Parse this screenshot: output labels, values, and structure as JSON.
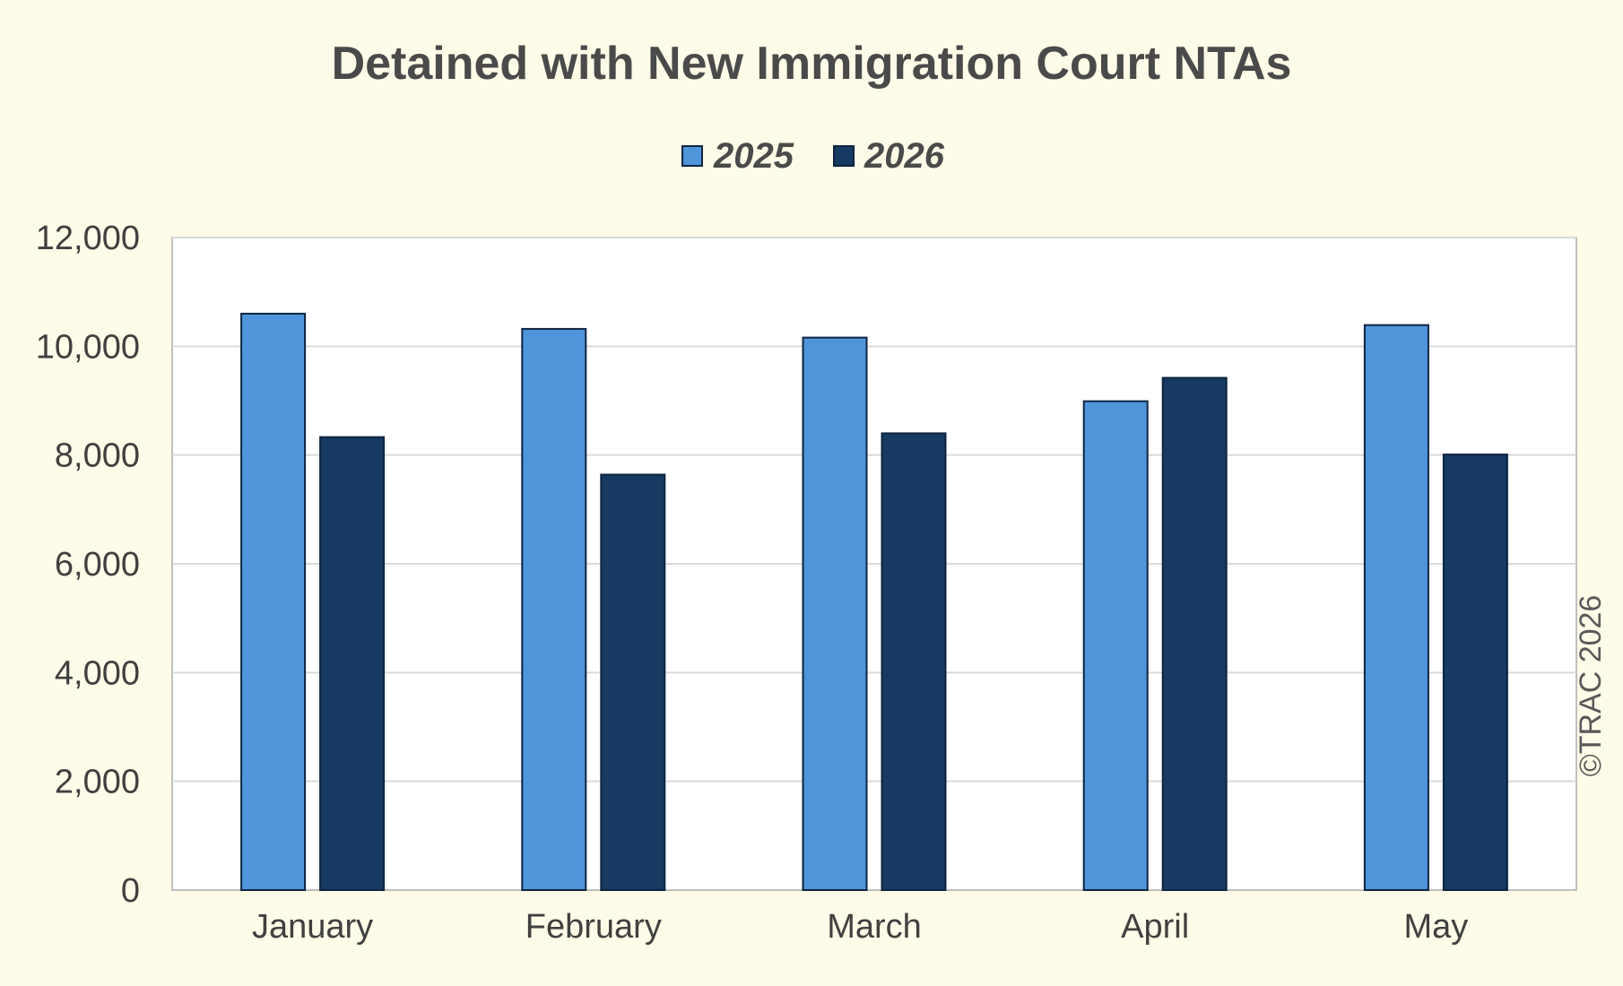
{
  "colors": {
    "background": "#fefbe8",
    "plot_area": "#ffffff",
    "series_2025": "#4f95da",
    "series_2026": "#163a61",
    "bar_outline": "#0e2440",
    "text": "#404040",
    "title_text": "#4a4a4a",
    "gridline": "#d9d9d9",
    "plot_border": "#bfbfbf"
  },
  "copyright": "©TRAC 2026",
  "chart_data": {
    "type": "bar",
    "title": "Detained with New Immigration Court NTAs",
    "xlabel": "",
    "ylabel": "",
    "categories": [
      "January",
      "February",
      "March",
      "April",
      "May"
    ],
    "series": [
      {
        "name": "2025",
        "values": [
          10600,
          10320,
          10160,
          8990,
          10390
        ]
      },
      {
        "name": "2026",
        "values": [
          8330,
          7640,
          8400,
          9420,
          8010
        ]
      }
    ],
    "ylim": [
      0,
      12000
    ],
    "y_ticks": [
      {
        "value": 0,
        "label": "0"
      },
      {
        "value": 2000,
        "label": "2,000"
      },
      {
        "value": 4000,
        "label": "4,000"
      },
      {
        "value": 6000,
        "label": "6,000"
      },
      {
        "value": 8000,
        "label": "8,000"
      },
      {
        "value": 10000,
        "label": "10,000"
      },
      {
        "value": 12000,
        "label": "12,000"
      }
    ],
    "grid": true,
    "legend_position": "top-center"
  }
}
